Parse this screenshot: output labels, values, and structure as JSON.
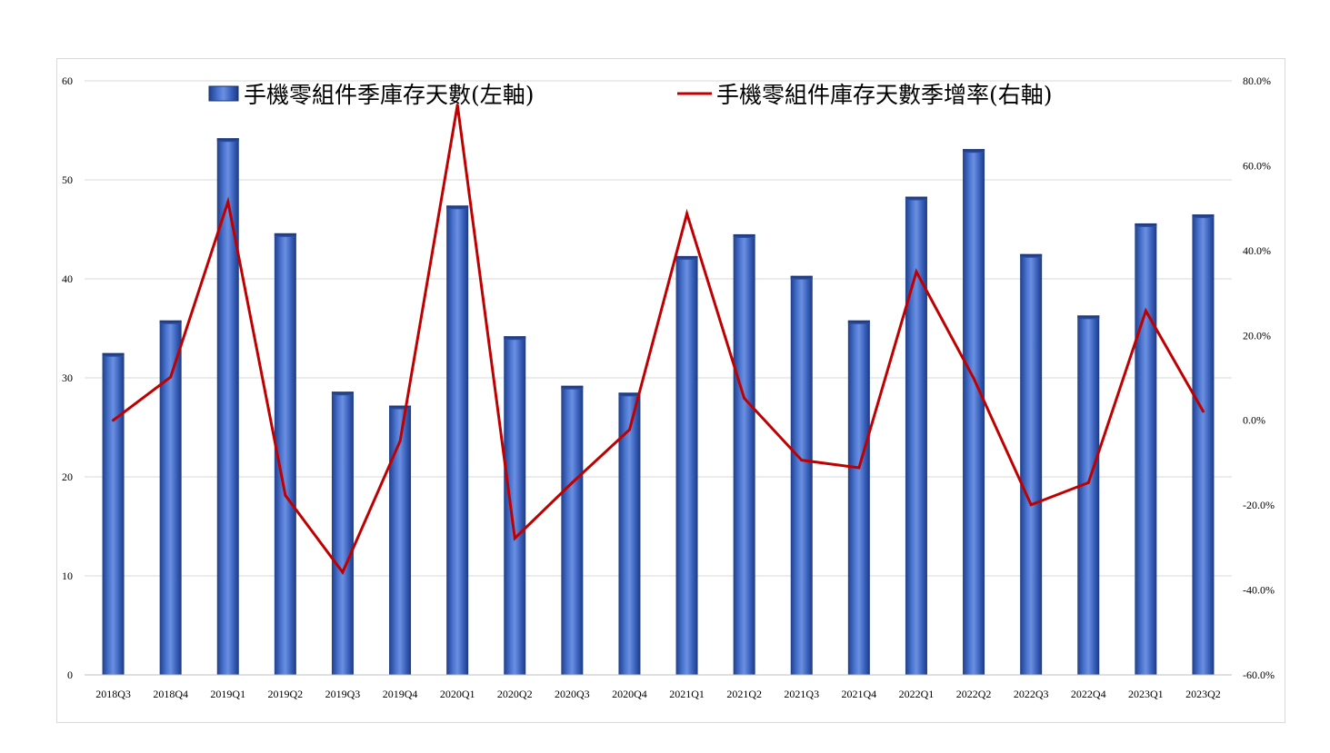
{
  "chart_data": {
    "type": "bar",
    "title": "",
    "xlabel": "",
    "ylabel": "",
    "categories": [
      "2018Q3",
      "2018Q4",
      "2019Q1",
      "2019Q2",
      "2019Q3",
      "2019Q4",
      "2020Q1",
      "2020Q2",
      "2020Q3",
      "2020Q4",
      "2021Q1",
      "2021Q2",
      "2021Q3",
      "2021Q4",
      "2022Q1",
      "2022Q2",
      "2022Q3",
      "2022Q4",
      "2023Q1",
      "2023Q2"
    ],
    "series": [
      {
        "name": "手機零組件季庫存天數(左軸)",
        "type": "bar",
        "axis": "left",
        "color": "#3d66c2",
        "values": [
          32.5,
          35.8,
          54.2,
          44.6,
          28.6,
          27.2,
          47.4,
          34.2,
          29.2,
          28.5,
          42.3,
          44.5,
          40.3,
          35.8,
          48.3,
          53.1,
          42.5,
          36.3,
          45.6,
          46.5
        ]
      },
      {
        "name": "手機零組件庫存天數季增率(右軸)",
        "type": "line",
        "axis": "right",
        "color": "#c00000",
        "values": [
          0.0,
          10.2,
          51.5,
          -17.7,
          -35.8,
          -4.9,
          74.3,
          -27.8,
          -14.7,
          -2.2,
          48.7,
          5.2,
          -9.4,
          -11.2,
          35.0,
          9.9,
          -19.9,
          -14.7,
          25.8,
          2.1
        ]
      }
    ],
    "ylim_left": [
      0,
      60
    ],
    "yticks_left": [
      "0",
      "10",
      "20",
      "30",
      "40",
      "50",
      "60"
    ],
    "ylim_right": [
      -60,
      80
    ],
    "yticks_right": [
      "-60.0%",
      "-40.0%",
      "-20.0%",
      "0.0%",
      "20.0%",
      "40.0%",
      "60.0%",
      "80.0%"
    ],
    "grid": true,
    "legend_position": "top"
  }
}
